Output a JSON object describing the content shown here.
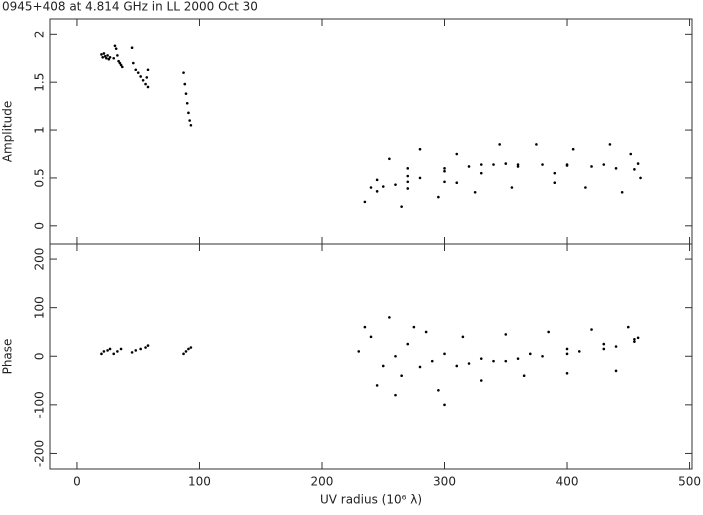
{
  "chart_data": [
    {
      "type": "scatter",
      "title": "0945+408 at 4.814 GHz in LL  2000 Oct 30",
      "ylabel": "Amplitude",
      "color": "#000000",
      "xlim": [
        -22,
        502
      ],
      "xticks": [
        0,
        100,
        200,
        300,
        400,
        500
      ],
      "ylim": [
        -0.19,
        2.16
      ],
      "yticks": [
        0,
        0.5,
        1,
        1.5,
        2
      ],
      "x": [
        20,
        21,
        22,
        23,
        24,
        25,
        26,
        27,
        30,
        31,
        32,
        33,
        34,
        35,
        36,
        37,
        45,
        46,
        48,
        50,
        52,
        54,
        56,
        58,
        58,
        57,
        87,
        88,
        89,
        90,
        91,
        92,
        93,
        240,
        250,
        260,
        270,
        280,
        300,
        320,
        340,
        360,
        380,
        400,
        420,
        440,
        455,
        245,
        270,
        300,
        330,
        350,
        400,
        430,
        458,
        245,
        270,
        300,
        330,
        360,
        235,
        255,
        265,
        280,
        295,
        310,
        325,
        345,
        355,
        375,
        390,
        405,
        415,
        435,
        445,
        452,
        460,
        270,
        310,
        390
      ],
      "values": [
        1.79,
        1.76,
        1.8,
        1.77,
        1.75,
        1.78,
        1.74,
        1.76,
        1.75,
        1.88,
        1.85,
        1.78,
        1.72,
        1.7,
        1.68,
        1.66,
        1.86,
        1.7,
        1.63,
        1.6,
        1.56,
        1.52,
        1.48,
        1.45,
        1.63,
        1.55,
        1.6,
        1.48,
        1.38,
        1.28,
        1.18,
        1.1,
        1.05,
        0.4,
        0.41,
        0.43,
        0.46,
        0.5,
        0.57,
        0.62,
        0.64,
        0.64,
        0.64,
        0.63,
        0.62,
        0.6,
        0.59,
        0.48,
        0.52,
        0.6,
        0.64,
        0.65,
        0.64,
        0.64,
        0.65,
        0.36,
        0.39,
        0.46,
        0.55,
        0.62,
        0.25,
        0.7,
        0.2,
        0.8,
        0.3,
        0.75,
        0.35,
        0.85,
        0.4,
        0.85,
        0.45,
        0.8,
        0.4,
        0.85,
        0.35,
        0.75,
        0.5,
        0.6,
        0.45,
        0.55
      ]
    },
    {
      "type": "scatter",
      "ylabel": "Phase",
      "xlabel": "UV radius  (10⁶ λ)",
      "color": "#000000",
      "xlim": [
        -22,
        502
      ],
      "xticks": [
        0,
        100,
        200,
        300,
        400,
        500
      ],
      "ylim": [
        -232,
        231
      ],
      "yticks": [
        -200,
        -100,
        0,
        100,
        200
      ],
      "x": [
        20,
        22,
        25,
        27,
        30,
        33,
        36,
        45,
        48,
        52,
        56,
        58,
        87,
        89,
        91,
        93,
        230,
        260,
        290,
        320,
        350,
        380,
        410,
        440,
        455,
        240,
        270,
        300,
        330,
        360,
        400,
        430,
        455,
        250,
        280,
        310,
        340,
        370,
        400,
        430,
        458,
        235,
        245,
        255,
        265,
        285,
        295,
        315,
        330,
        350,
        365,
        385,
        400,
        420,
        440,
        450,
        300,
        260,
        275
      ],
      "values": [
        5,
        10,
        12,
        15,
        5,
        10,
        15,
        8,
        12,
        15,
        18,
        22,
        5,
        10,
        15,
        18,
        10,
        0,
        -10,
        -15,
        -10,
        0,
        10,
        20,
        30,
        40,
        25,
        5,
        -5,
        -5,
        5,
        15,
        35,
        -20,
        -22,
        -20,
        -10,
        5,
        15,
        25,
        38,
        60,
        -60,
        80,
        -40,
        50,
        -70,
        40,
        -50,
        45,
        -40,
        50,
        -35,
        55,
        -30,
        60,
        -100,
        -80,
        60
      ]
    }
  ]
}
